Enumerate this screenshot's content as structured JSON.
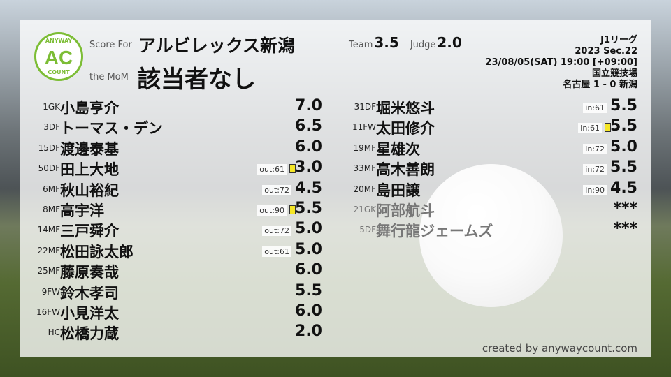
{
  "header": {
    "logo_top": "ANYWAY",
    "logo_mid": "AC",
    "logo_bottom": "COUNT",
    "score_for_label": "Score For",
    "team_name": "アルビレックス新潟",
    "mom_label": "the MoM",
    "mom_value": "該当者なし",
    "team_label": "Team",
    "team_score": "3.5",
    "judge_label": "Judge",
    "judge_score": "2.0"
  },
  "match": {
    "league": "J1リーグ",
    "section": "2023 Sec.22",
    "datetime": "23/08/05(SAT) 19:00 [+09:00]",
    "venue": "国立競技場",
    "result": "名古屋 1 - 0 新潟"
  },
  "starters": [
    {
      "num": "1GK",
      "name": "小島亨介",
      "score": "7.0",
      "tag": "",
      "card": false
    },
    {
      "num": "3DF",
      "name": "トーマス・デン",
      "score": "6.5",
      "tag": "",
      "card": false
    },
    {
      "num": "15DF",
      "name": "渡邊泰基",
      "score": "6.0",
      "tag": "",
      "card": false
    },
    {
      "num": "50DF",
      "name": "田上大地",
      "score": "3.0",
      "tag": "out:61",
      "card": true
    },
    {
      "num": "6MF",
      "name": "秋山裕紀",
      "score": "4.5",
      "tag": "out:72",
      "card": false
    },
    {
      "num": "8MF",
      "name": "高宇洋",
      "score": "5.5",
      "tag": "out:90",
      "card": true
    },
    {
      "num": "14MF",
      "name": "三戸舜介",
      "score": "5.0",
      "tag": "out:72",
      "card": false
    },
    {
      "num": "22MF",
      "name": "松田詠太郎",
      "score": "5.0",
      "tag": "out:61",
      "card": false
    },
    {
      "num": "25MF",
      "name": "藤原奏哉",
      "score": "6.0",
      "tag": "",
      "card": false
    },
    {
      "num": "9FW",
      "name": "鈴木孝司",
      "score": "5.5",
      "tag": "",
      "card": false
    },
    {
      "num": "16FW",
      "name": "小見洋太",
      "score": "6.0",
      "tag": "",
      "card": false
    },
    {
      "num": "HC",
      "name": "松橋力蔵",
      "score": "2.0",
      "tag": "",
      "card": false
    }
  ],
  "subs": [
    {
      "num": "31DF",
      "name": "堀米悠斗",
      "score": "5.5",
      "tag": "in:61",
      "card": false,
      "unused": false
    },
    {
      "num": "11FW",
      "name": "太田修介",
      "score": "5.5",
      "tag": "in:61",
      "card": true,
      "unused": false
    },
    {
      "num": "19MF",
      "name": "星雄次",
      "score": "5.0",
      "tag": "in:72",
      "card": false,
      "unused": false
    },
    {
      "num": "33MF",
      "name": "高木善朗",
      "score": "5.5",
      "tag": "in:72",
      "card": false,
      "unused": false
    },
    {
      "num": "20MF",
      "name": "島田譲",
      "score": "4.5",
      "tag": "in:90",
      "card": false,
      "unused": false
    },
    {
      "num": "21GK",
      "name": "阿部航斗",
      "score": "***",
      "tag": "",
      "card": false,
      "unused": true
    },
    {
      "num": "5DF",
      "name": "舞行龍ジェームズ",
      "score": "***",
      "tag": "",
      "card": false,
      "unused": true
    }
  ],
  "footer": {
    "credit": "created by anywaycount.com"
  },
  "colors": {
    "logo": "#7cbd35",
    "yellow_card": "#f5e626"
  }
}
